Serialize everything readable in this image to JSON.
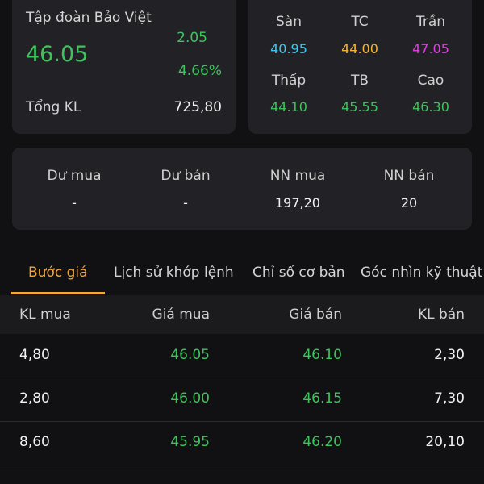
{
  "stock": {
    "name": "Tập đoàn Bảo Việt",
    "last_price": "46.05",
    "change": "2.05",
    "change_pct": "4.66%",
    "volume_label": "Tổng KL",
    "volume_value": "725,80"
  },
  "price_levels": [
    {
      "label": "Sàn",
      "value": "40.95",
      "color": "#3cc8f0"
    },
    {
      "label": "TC",
      "value": "44.00",
      "color": "#f2b233"
    },
    {
      "label": "Trần",
      "value": "47.05",
      "color": "#e03ce0"
    },
    {
      "label": "Thấp",
      "value": "44.10",
      "color": "#3ec45c"
    },
    {
      "label": "TB",
      "value": "45.55",
      "color": "#3ec45c"
    },
    {
      "label": "Cao",
      "value": "46.30",
      "color": "#3ec45c"
    }
  ],
  "flow": [
    {
      "label": "Dư mua",
      "value": "-"
    },
    {
      "label": "Dư bán",
      "value": "-"
    },
    {
      "label": "NN mua",
      "value": "197,20"
    },
    {
      "label": "NN bán",
      "value": "20"
    }
  ],
  "tabs": [
    {
      "label": "Bước giá",
      "active": true
    },
    {
      "label": "Lịch sử khớp lệnh",
      "active": false
    },
    {
      "label": "Chỉ số cơ bản",
      "active": false
    },
    {
      "label": "Góc nhìn kỹ thuật",
      "active": false
    }
  ],
  "order_book": {
    "headers": [
      "KL mua",
      "Giá mua",
      "Giá bán",
      "KL bán"
    ],
    "rows": [
      [
        "4,80",
        "46.05",
        "46.10",
        "2,30"
      ],
      [
        "2,80",
        "46.00",
        "46.15",
        "7,30"
      ],
      [
        "8,60",
        "45.95",
        "46.20",
        "20,10"
      ]
    ]
  },
  "colors": {
    "accent": "#f2a83a",
    "up": "#3ec45c"
  }
}
